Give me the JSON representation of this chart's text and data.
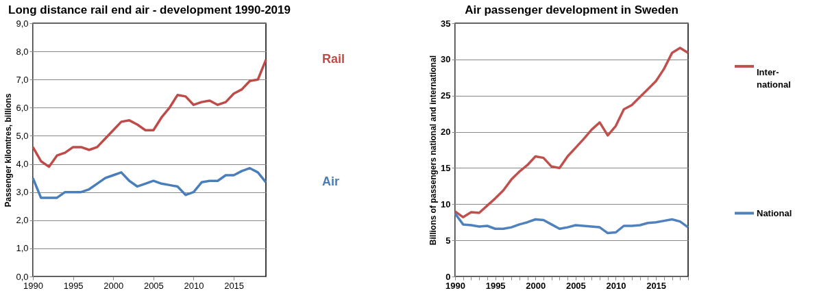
{
  "chart_data": [
    {
      "type": "line",
      "title": "Long distance rail end air - development 1990-2019",
      "ylabel": "Passenger kilomtres, billions",
      "x": [
        1990,
        1991,
        1992,
        1993,
        1994,
        1995,
        1996,
        1997,
        1998,
        1999,
        2000,
        2001,
        2002,
        2003,
        2004,
        2005,
        2006,
        2007,
        2008,
        2009,
        2010,
        2011,
        2012,
        2013,
        2014,
        2015,
        2016,
        2017,
        2018,
        2019
      ],
      "series": [
        {
          "name": "Rail",
          "color": "#be4b48",
          "values": [
            4.6,
            4.1,
            3.9,
            4.3,
            4.4,
            4.6,
            4.6,
            4.5,
            4.6,
            4.9,
            5.2,
            5.5,
            5.55,
            5.4,
            5.2,
            5.2,
            5.65,
            6.0,
            6.45,
            6.4,
            6.1,
            6.2,
            6.25,
            6.1,
            6.2,
            6.5,
            6.65,
            6.95,
            7.0,
            7.7
          ]
        },
        {
          "name": "Air",
          "color": "#4a7ebb",
          "values": [
            3.5,
            2.8,
            2.8,
            2.8,
            3.0,
            3.0,
            3.0,
            3.1,
            3.3,
            3.5,
            3.6,
            3.7,
            3.4,
            3.2,
            3.3,
            3.4,
            3.3,
            3.25,
            3.2,
            2.9,
            3.0,
            3.35,
            3.4,
            3.4,
            3.6,
            3.6,
            3.75,
            3.85,
            3.7,
            3.35
          ]
        }
      ],
      "xlim": [
        1990,
        2019
      ],
      "xticks": [
        1990,
        1995,
        2000,
        2005,
        2010,
        2015
      ],
      "ylim": [
        0,
        9
      ],
      "yticks": [
        {
          "value": 0,
          "label": "0,0"
        },
        {
          "value": 1,
          "label": "1,0"
        },
        {
          "value": 2,
          "label": "2,0"
        },
        {
          "value": 3,
          "label": "3,0"
        },
        {
          "value": 4,
          "label": "4,0"
        },
        {
          "value": 5,
          "label": "5,0"
        },
        {
          "value": 6,
          "label": "6,0"
        },
        {
          "value": 7,
          "label": "7,0"
        },
        {
          "value": 8,
          "label": "8,0"
        },
        {
          "value": 9,
          "label": "9,0"
        }
      ],
      "grid": "y",
      "legend": false,
      "marker": "none",
      "line_style": "solid"
    },
    {
      "type": "line",
      "title": "Air passenger development in Sweden",
      "ylabel": "Billions of passengers national and international",
      "x": [
        1990,
        1991,
        1992,
        1993,
        1994,
        1995,
        1996,
        1997,
        1998,
        1999,
        2000,
        2001,
        2002,
        2003,
        2004,
        2005,
        2006,
        2007,
        2008,
        2009,
        2010,
        2011,
        2012,
        2013,
        2014,
        2015,
        2016,
        2017,
        2018,
        2019
      ],
      "series": [
        {
          "name": "Inter-\nnational",
          "color": "#c0504d",
          "values": [
            9.0,
            8.2,
            8.9,
            8.8,
            9.8,
            10.8,
            11.9,
            13.4,
            14.5,
            15.4,
            16.6,
            16.4,
            15.2,
            15.0,
            16.6,
            17.8,
            19.0,
            20.3,
            21.3,
            19.5,
            20.8,
            23.1,
            23.7,
            24.8,
            25.9,
            27.0,
            28.7,
            30.9,
            31.6,
            30.9
          ]
        },
        {
          "name": "National",
          "color": "#4f81bd",
          "values": [
            8.7,
            7.2,
            7.1,
            6.9,
            7.0,
            6.6,
            6.6,
            6.8,
            7.2,
            7.5,
            7.9,
            7.8,
            7.2,
            6.6,
            6.8,
            7.1,
            7.0,
            6.9,
            6.8,
            6.0,
            6.1,
            7.0,
            7.0,
            7.1,
            7.4,
            7.5,
            7.7,
            7.9,
            7.6,
            6.8
          ]
        }
      ],
      "xlim": [
        1990,
        2019
      ],
      "xticks": [
        1990,
        {
          "value": 1991,
          "label": null
        },
        {
          "value": 1992,
          "label": null
        },
        {
          "value": 1993,
          "label": null
        },
        {
          "value": 1994,
          "label": null
        },
        1995,
        {
          "value": 1996,
          "label": null
        },
        {
          "value": 1997,
          "label": null
        },
        {
          "value": 1998,
          "label": null
        },
        {
          "value": 1999,
          "label": null
        },
        2000,
        {
          "value": 2001,
          "label": null
        },
        {
          "value": 2002,
          "label": null
        },
        {
          "value": 2003,
          "label": null
        },
        {
          "value": 2004,
          "label": null
        },
        2005,
        {
          "value": 2006,
          "label": null
        },
        {
          "value": 2007,
          "label": null
        },
        {
          "value": 2008,
          "label": null
        },
        {
          "value": 2009,
          "label": null
        },
        2010,
        {
          "value": 2011,
          "label": null
        },
        {
          "value": 2012,
          "label": null
        },
        {
          "value": 2013,
          "label": null
        },
        {
          "value": 2014,
          "label": null
        },
        2015,
        {
          "value": 2016,
          "label": null
        },
        {
          "value": 2017,
          "label": null
        },
        {
          "value": 2018,
          "label": null
        },
        {
          "value": 2019,
          "label": null
        }
      ],
      "ylim": [
        0,
        35
      ],
      "yticks": [
        0,
        5,
        10,
        15,
        20,
        25,
        30,
        35
      ],
      "grid": "y",
      "legend": "right",
      "marker": "none",
      "line_style": "solid"
    }
  ]
}
